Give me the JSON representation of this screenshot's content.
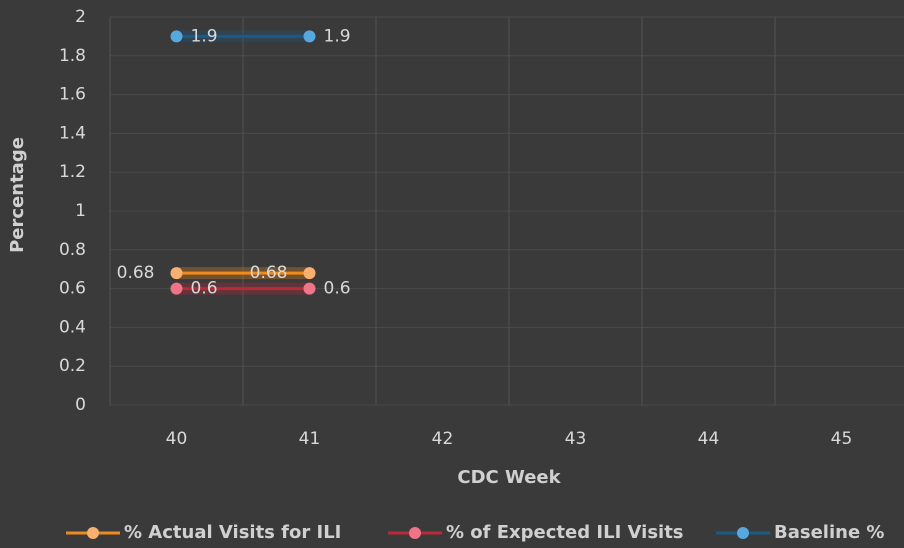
{
  "chart_data": {
    "type": "line",
    "x_label": "CDC Week",
    "y_label": "Percentage",
    "categories": [
      "40",
      "41",
      "42",
      "43",
      "44",
      "45"
    ],
    "series": [
      {
        "name": "% Actual Visits for ILI",
        "color": "#ef8a1f",
        "marker_color": "#f7b070",
        "values": [
          0.68,
          0.68,
          null,
          null,
          null,
          null
        ]
      },
      {
        "name": "% of Expected ILI Visits",
        "color": "#b8293a",
        "marker_color": "#ef7488",
        "values": [
          0.6,
          0.6,
          null,
          null,
          null,
          null
        ]
      },
      {
        "name": "Baseline %",
        "color": "#1c5a86",
        "marker_color": "#56a8de",
        "values": [
          1.9,
          1.9,
          null,
          null,
          null,
          null
        ]
      }
    ],
    "ylim": [
      0,
      2
    ],
    "yticks": [
      0,
      0.2,
      0.4,
      0.6,
      0.8,
      1,
      1.2,
      1.4,
      1.6,
      1.8,
      2
    ],
    "grid": true
  }
}
